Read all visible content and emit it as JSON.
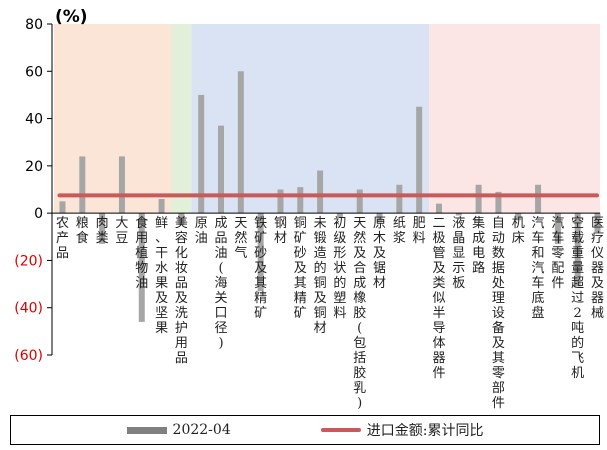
{
  "chart_data": {
    "type": "bar",
    "y_unit": "(%)",
    "ylim": [
      -60,
      80
    ],
    "yticks": [
      {
        "value": 80,
        "label": "80"
      },
      {
        "value": 60,
        "label": "60"
      },
      {
        "value": 40,
        "label": "40"
      },
      {
        "value": 20,
        "label": "20"
      },
      {
        "value": 0,
        "label": "0"
      },
      {
        "value": -20,
        "label": "(20)"
      },
      {
        "value": -40,
        "label": "(40)"
      },
      {
        "value": -60,
        "label": "(60)"
      }
    ],
    "categories": [
      "农产品",
      "粮食",
      "肉类",
      "大豆",
      "食用植物油",
      "鲜、干水果及坚果",
      "美容化妆品及洗护用品",
      "原油",
      "成品油(海关口径)",
      "天然气",
      "铁矿砂及其精矿",
      "钢材",
      "铜矿砂及其精矿",
      "未锻造的铜及铜材",
      "初级形状的塑料",
      "天然及合成橡胶(包括胶乳)",
      "原木及锯材",
      "纸浆",
      "肥料",
      "二极管及类似半导体器件",
      "液晶显示板",
      "集成电路",
      "自动数据处理设备及其零部件",
      "机床",
      "汽车和汽车底盘",
      "汽车零配件",
      "空载重量超过2吨的飞机",
      "医疗仪器及器械"
    ],
    "series": [
      {
        "name": "2022-04",
        "type": "bar",
        "color": "#a6a6a6",
        "values": [
          5,
          24,
          -13,
          24,
          -46,
          6,
          -5,
          50,
          37,
          60,
          -33,
          10,
          11,
          18,
          -2,
          10,
          -4,
          12,
          45,
          4,
          -1,
          12,
          9,
          -3,
          12,
          -13,
          -31,
          -8
        ]
      },
      {
        "name": "进口金额:累计同比",
        "type": "line",
        "color": "#c85a5a",
        "value": 7.5
      }
    ],
    "bands": [
      {
        "from": 0,
        "to": 5,
        "color": "#fbe5d6"
      },
      {
        "from": 6,
        "to": 6,
        "color": "#e2efd9"
      },
      {
        "from": 7,
        "to": 18,
        "color": "#dae3f3"
      },
      {
        "from": 19,
        "to": 27,
        "color": "#fbe5e5"
      }
    ],
    "legend": {
      "position": "bottom"
    }
  }
}
